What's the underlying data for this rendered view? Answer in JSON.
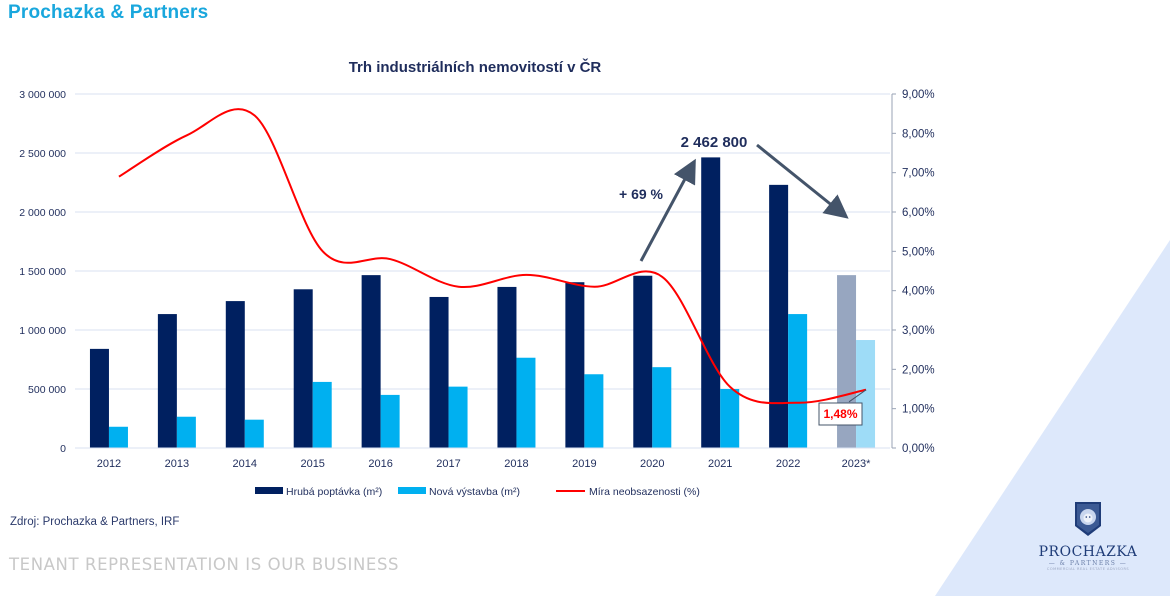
{
  "header": {
    "brand": "Prochazka & Partners"
  },
  "footer": {
    "source": "Zdroj: Prochazka & Partners, IRF",
    "tagline": "TENANT REPRESENTATION IS OUR BUSINESS"
  },
  "logo": {
    "name": "PROCHAZKA",
    "sub": "— & PARTNERS —",
    "tagline": "COMMERCIAL REAL ESTATE ADVISORS",
    "icon": "lion-shield-icon"
  },
  "colors": {
    "brand": "#19a7dd",
    "demand": "#002060",
    "construction": "#00b0f0",
    "demand_forecast": "#97a6c0",
    "construction_forecast": "#9edcf7",
    "vacancy": "#ff0000",
    "arrow": "#44546a",
    "text_dark": "#1f2d5c",
    "grid": "#d9e1f2",
    "triangle": "#dde8fb"
  },
  "chart_data": {
    "type": "bar",
    "title": "Trh industriálních nemovitostí v ČR",
    "categories": [
      "2012",
      "2013",
      "2014",
      "2015",
      "2016",
      "2017",
      "2018",
      "2019",
      "2020",
      "2021",
      "2022",
      "2023*"
    ],
    "forecast_category": "2023*",
    "series": [
      {
        "name": "Hrubá poptávka (m²)",
        "type": "bar",
        "axis": "left",
        "values": [
          840000,
          1135000,
          1245000,
          1345000,
          1465000,
          1280000,
          1365000,
          1405000,
          1460000,
          2462800,
          2230000,
          1465000
        ]
      },
      {
        "name": "Nová výstavba (m²)",
        "type": "bar",
        "axis": "left",
        "values": [
          180000,
          265000,
          240000,
          560000,
          450000,
          520000,
          765000,
          625000,
          685000,
          500000,
          1135000,
          915000
        ]
      },
      {
        "name": "Míra neobsazenosti (%)",
        "type": "line",
        "axis": "right",
        "values": [
          6.9,
          7.95,
          8.45,
          5.0,
          4.8,
          4.1,
          4.4,
          4.1,
          4.35,
          1.55,
          1.15,
          1.48
        ]
      }
    ],
    "y_left": {
      "min": 0,
      "max": 3000000,
      "step": 500000,
      "tick_labels": [
        "0",
        "500 000",
        "1 000 000",
        "1 500 000",
        "2 000 000",
        "2 500 000",
        "3 000 000"
      ]
    },
    "y_right": {
      "min": 0,
      "max": 9,
      "step": 1,
      "tick_labels": [
        "0,00%",
        "1,00%",
        "2,00%",
        "3,00%",
        "4,00%",
        "5,00%",
        "6,00%",
        "7,00%",
        "8,00%",
        "9,00%"
      ]
    },
    "grid": true,
    "legend_position": "bottom",
    "annotations": {
      "peak_label": "2 462 800",
      "growth_label": "+ 69 %",
      "last_vacancy_label": "1,48%"
    }
  }
}
